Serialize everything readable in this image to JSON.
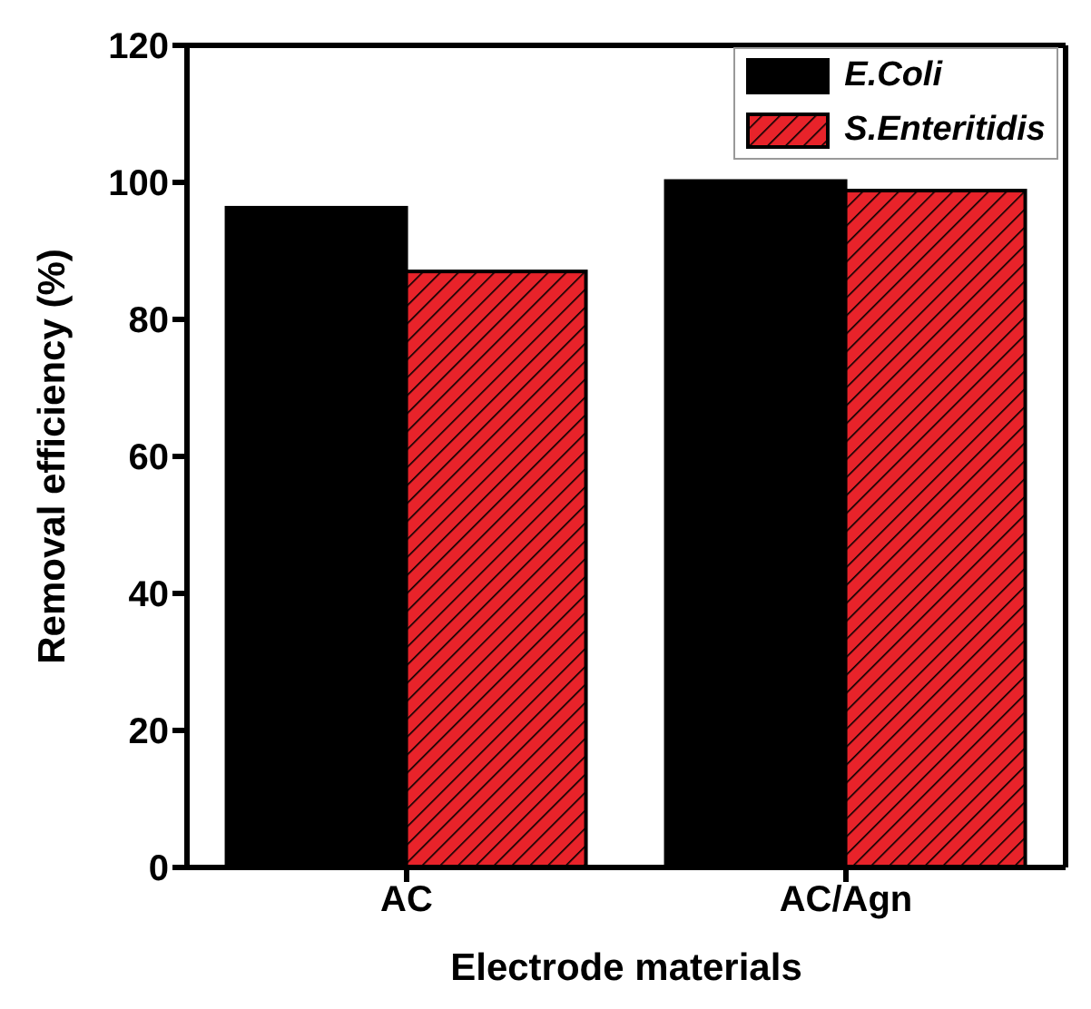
{
  "chart_data": {
    "type": "bar",
    "xlabel": "Electrode materials",
    "ylabel": "Removal efficiency (%)",
    "categories": [
      "AC",
      "AC/Agn"
    ],
    "series": [
      {
        "name": "E.Coli",
        "color": "#000000",
        "values": [
          96.3,
          100.2
        ]
      },
      {
        "name": "S.Enteritidis",
        "color": "#e8232a",
        "values": [
          87,
          98.8
        ]
      }
    ],
    "ylim": [
      0,
      120
    ],
    "yticks": [
      0,
      20,
      40,
      60,
      80,
      100,
      120
    ],
    "grid": false,
    "legend": "top right"
  }
}
